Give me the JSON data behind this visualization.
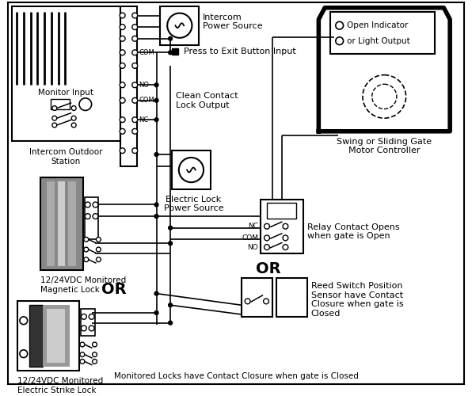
{
  "bg_color": "#ffffff",
  "labels": {
    "intercom_ps": "Intercom\nPower Source",
    "press_exit": "Press to Exit Button Input",
    "clean_contact": "Clean Contact\nLock Output",
    "electric_lock_ps": "Electric Lock\nPower Source",
    "monitor_input": "Monitor Input",
    "intercom_outdoor": "Intercom Outdoor\nStation",
    "mag_lock": "12/24VDC Monitored\nMagnetic Lock",
    "strike_lock": "12/24VDC Monitored\nElectric Strike Lock",
    "relay_contact": "Relay Contact Opens\nwhen gate is Open",
    "reed_switch": "Reed Switch Position\nSensor have Contact\nClosure when gate is\nClosed",
    "gate_controller": "Swing or Sliding Gate\nMotor Controller",
    "open_indicator": "Open Indicator\nor Light Output",
    "or1": "OR",
    "or2": "OR",
    "monitored_locks": "Monitored Locks have Contact Closure when gate is Closed"
  }
}
